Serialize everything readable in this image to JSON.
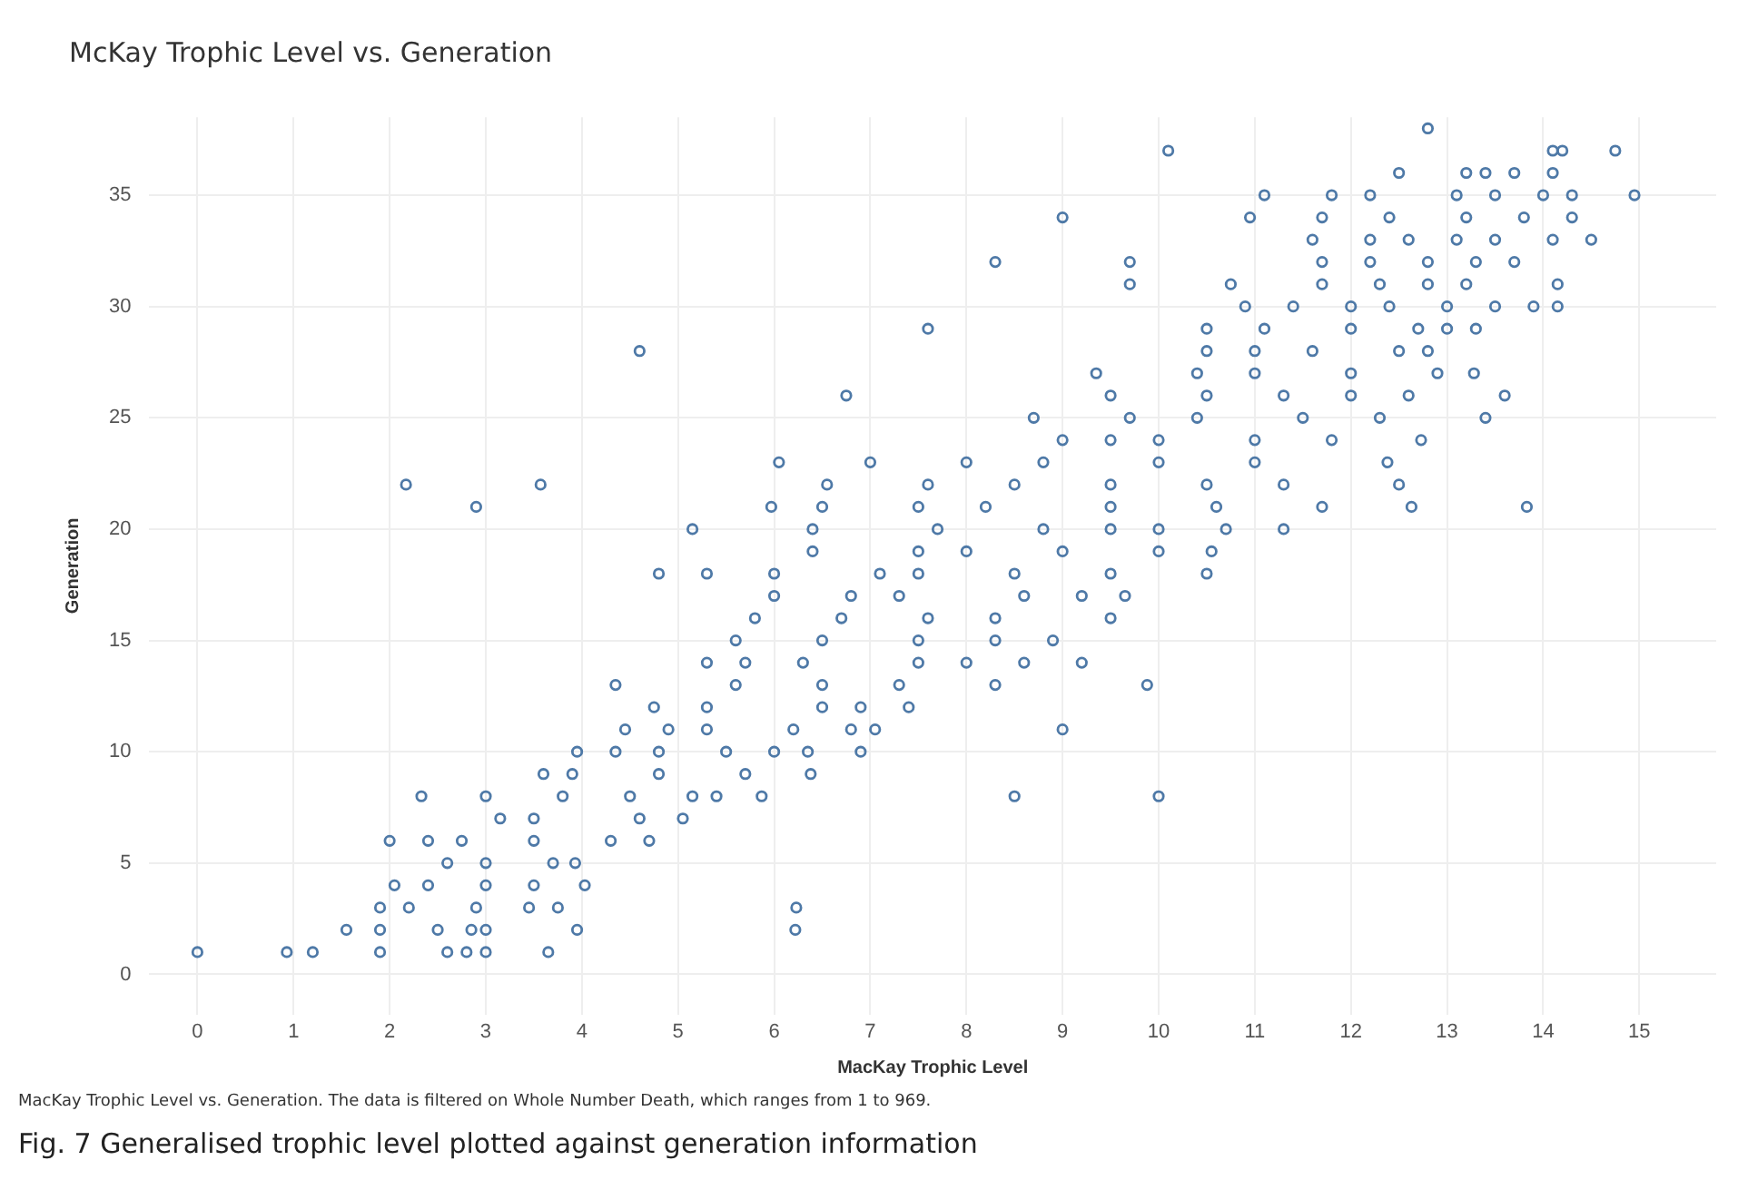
{
  "chart_data": {
    "type": "scatter",
    "title": "McKay Trophic Level vs. Generation",
    "xlabel": "MacKay Trophic Level",
    "ylabel": "Generation",
    "annotations": [
      "MacKay Trophic Level vs. Generation. The data is filtered on Whole Number Death, which ranges from 1 to 969.",
      "Fig. 7  Generalised trophic level plotted against generation information"
    ],
    "xlim": [
      -0.5,
      15.8
    ],
    "xticks": [
      0,
      1,
      2,
      3,
      4,
      5,
      6,
      7,
      8,
      9,
      10,
      11,
      12,
      13,
      14,
      15
    ],
    "ylim": [
      -1.8,
      38.5
    ],
    "yticks": [
      0,
      5,
      10,
      15,
      20,
      25,
      30,
      35
    ],
    "grid": true,
    "marker": "circle",
    "series": [
      {
        "color": "#4e79a7",
        "x": [
          0,
          0.93,
          1.2,
          1.9,
          2.6,
          2.8,
          3.0,
          3.65,
          1.55,
          1.9,
          2.5,
          2.85,
          3.0,
          3.95,
          6.22,
          1.9,
          2.2,
          2.9,
          3.45,
          3.75,
          6.23,
          2.05,
          2.4,
          3.0,
          3.5,
          4.03,
          2.6,
          3.0,
          3.7,
          3.93,
          2.0,
          2.4,
          2.75,
          3.5,
          4.3,
          4.7,
          3.15,
          3.5,
          4.6,
          5.05,
          2.33,
          3.0,
          3.8,
          4.5,
          5.15,
          5.4,
          5.87,
          8.5,
          10.0,
          3.6,
          3.9,
          4.8,
          5.7,
          6.38,
          3.95,
          4.35,
          4.8,
          5.5,
          6.0,
          6.35,
          6.9,
          4.45,
          4.9,
          5.3,
          6.2,
          6.8,
          7.05,
          9.0,
          4.75,
          5.3,
          6.5,
          6.9,
          7.4,
          4.35,
          5.6,
          6.5,
          7.3,
          8.3,
          9.88,
          5.3,
          5.7,
          6.3,
          7.5,
          8.0,
          8.6,
          9.2,
          5.6,
          6.5,
          7.5,
          8.3,
          8.9,
          5.8,
          6.7,
          7.6,
          8.3,
          9.5,
          6.0,
          6.8,
          7.3,
          8.6,
          9.2,
          9.65,
          4.8,
          5.3,
          6.0,
          7.1,
          7.5,
          8.5,
          9.5,
          10.5,
          6.4,
          7.5,
          8.0,
          9.0,
          10.0,
          10.55,
          5.15,
          6.4,
          7.7,
          8.8,
          9.5,
          10.0,
          10.7,
          11.3,
          2.9,
          5.97,
          6.5,
          7.5,
          8.2,
          9.5,
          10.6,
          11.7,
          12.63,
          13.83,
          2.17,
          3.57,
          6.55,
          7.6,
          8.5,
          9.5,
          10.5,
          11.3,
          12.5,
          6.05,
          7.0,
          8.0,
          8.8,
          10.0,
          11.0,
          12.38,
          9.0,
          9.5,
          10.0,
          11.0,
          11.8,
          12.73,
          8.7,
          9.7,
          10.4,
          11.5,
          12.3,
          13.4,
          6.75,
          9.5,
          10.5,
          11.3,
          12.0,
          12.6,
          13.6,
          9.35,
          10.4,
          11.0,
          12.0,
          12.9,
          13.28,
          4.6,
          10.5,
          11.0,
          11.6,
          12.5,
          12.8,
          7.6,
          10.5,
          11.1,
          12.0,
          12.7,
          13.0,
          13.3,
          10.9,
          11.4,
          12.0,
          12.4,
          13.0,
          13.5,
          13.9,
          14.15,
          9.7,
          10.75,
          11.7,
          12.3,
          12.8,
          13.2,
          14.15,
          8.3,
          9.7,
          11.7,
          12.2,
          12.8,
          13.3,
          13.7,
          11.6,
          12.2,
          12.6,
          13.1,
          13.5,
          14.1,
          14.5,
          9.0,
          10.95,
          11.7,
          12.4,
          13.2,
          13.8,
          14.3,
          11.1,
          11.8,
          12.2,
          13.1,
          13.5,
          14.0,
          14.3,
          14.95,
          12.5,
          13.2,
          13.4,
          13.7,
          14.1,
          10.1,
          14.1,
          14.2,
          14.75,
          12.8
        ],
        "values": [
          1,
          1,
          1,
          1,
          1,
          1,
          1,
          1,
          2,
          2,
          2,
          2,
          2,
          2,
          2,
          3,
          3,
          3,
          3,
          3,
          3,
          4,
          4,
          4,
          4,
          4,
          5,
          5,
          5,
          5,
          6,
          6,
          6,
          6,
          6,
          6,
          7,
          7,
          7,
          7,
          8,
          8,
          8,
          8,
          8,
          8,
          8,
          8,
          8,
          9,
          9,
          9,
          9,
          9,
          10,
          10,
          10,
          10,
          10,
          10,
          10,
          11,
          11,
          11,
          11,
          11,
          11,
          11,
          12,
          12,
          12,
          12,
          12,
          13,
          13,
          13,
          13,
          13,
          13,
          14,
          14,
          14,
          14,
          14,
          14,
          14,
          15,
          15,
          15,
          15,
          15,
          16,
          16,
          16,
          16,
          16,
          17,
          17,
          17,
          17,
          17,
          17,
          18,
          18,
          18,
          18,
          18,
          18,
          18,
          18,
          19,
          19,
          19,
          19,
          19,
          19,
          20,
          20,
          20,
          20,
          20,
          20,
          20,
          20,
          21,
          21,
          21,
          21,
          21,
          21,
          21,
          21,
          21,
          21,
          22,
          22,
          22,
          22,
          22,
          22,
          22,
          22,
          22,
          23,
          23,
          23,
          23,
          23,
          23,
          23,
          24,
          24,
          24,
          24,
          24,
          24,
          25,
          25,
          25,
          25,
          25,
          25,
          26,
          26,
          26,
          26,
          26,
          26,
          26,
          27,
          27,
          27,
          27,
          27,
          27,
          28,
          28,
          28,
          28,
          28,
          28,
          29,
          29,
          29,
          29,
          29,
          29,
          29,
          30,
          30,
          30,
          30,
          30,
          30,
          30,
          30,
          31,
          31,
          31,
          31,
          31,
          31,
          31,
          32,
          32,
          32,
          32,
          32,
          32,
          32,
          33,
          33,
          33,
          33,
          33,
          33,
          33,
          34,
          34,
          34,
          34,
          34,
          34,
          34,
          35,
          35,
          35,
          35,
          35,
          35,
          35,
          35,
          36,
          36,
          36,
          36,
          36,
          37,
          37,
          37,
          37,
          38
        ]
      }
    ]
  }
}
